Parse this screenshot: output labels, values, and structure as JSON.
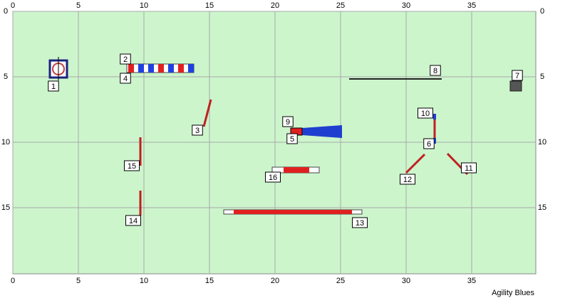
{
  "grid": {
    "xticks": [
      0,
      5,
      10,
      15,
      20,
      25,
      30,
      35
    ],
    "yticks": [
      0,
      5,
      10,
      15
    ]
  },
  "markers": [
    "1",
    "2",
    "3",
    "4",
    "5",
    "6",
    "7",
    "8",
    "9",
    "10",
    "11",
    "12",
    "13",
    "14",
    "15",
    "16"
  ],
  "footer": "Agility Blues"
}
